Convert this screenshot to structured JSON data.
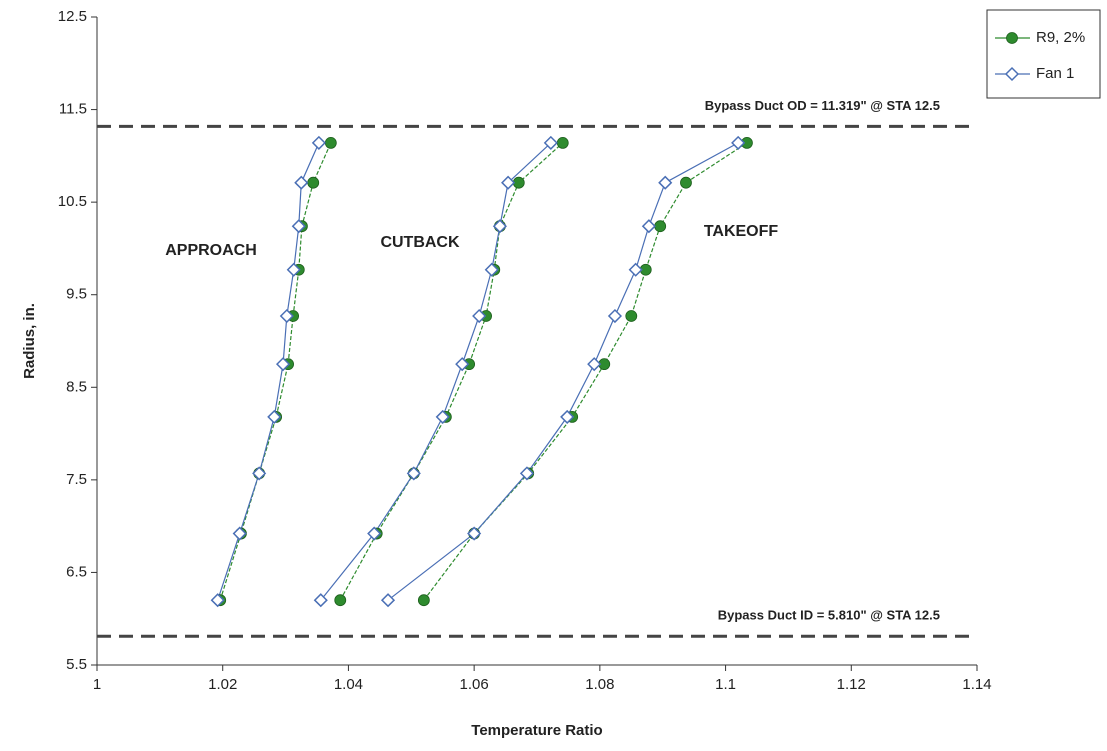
{
  "chart_data": {
    "type": "line",
    "xlabel": "Temperature Ratio",
    "ylabel": "Radius, in.",
    "xlim": [
      1,
      1.14
    ],
    "xticks": [
      1,
      1.02,
      1.04,
      1.06,
      1.08,
      1.1,
      1.12,
      1.14
    ],
    "ylim": [
      5.5,
      12.5
    ],
    "yticks": [
      5.5,
      6.5,
      7.5,
      8.5,
      9.5,
      10.5,
      11.5,
      12.5
    ],
    "grid": false,
    "legend": "outside-right",
    "series": [
      {
        "name": "R9, 2%",
        "color": "#2e8b2e",
        "marker": "circle",
        "x": [
          1.0196,
          1.0229,
          1.0258,
          1.0285,
          1.0304,
          1.0312,
          1.0321,
          1.0326,
          1.0344,
          1.0372,
          null,
          1.0387,
          1.0445,
          1.0504,
          1.0555,
          1.0592,
          1.0619,
          1.0632,
          1.0641,
          1.0671,
          1.0741,
          null,
          1.052,
          1.06,
          1.0686,
          1.0756,
          1.0807,
          1.085,
          1.0873,
          1.0896,
          1.0937,
          1.1034
        ],
        "values": [
          6.2,
          6.92,
          7.57,
          8.18,
          8.75,
          9.27,
          9.77,
          10.24,
          10.71,
          11.14,
          null,
          6.2,
          6.92,
          7.57,
          8.18,
          8.75,
          9.27,
          9.77,
          10.24,
          10.71,
          11.14,
          null,
          6.2,
          6.92,
          7.57,
          8.18,
          8.75,
          9.27,
          9.77,
          10.24,
          10.71,
          11.14
        ]
      },
      {
        "name": "Fan 1",
        "color": "#4a6fb5",
        "marker": "diamond",
        "x": [
          1.0192,
          1.0227,
          1.0258,
          1.0282,
          1.0296,
          1.0302,
          1.0313,
          1.0321,
          1.0325,
          1.0353,
          null,
          1.0356,
          1.0441,
          1.0504,
          1.055,
          1.0581,
          1.0608,
          1.0628,
          1.0641,
          1.0654,
          1.0722,
          null,
          1.0463,
          1.06,
          1.0684,
          1.0748,
          1.0791,
          1.0824,
          1.0857,
          1.0878,
          1.0904,
          1.102
        ],
        "values": [
          6.2,
          6.92,
          7.57,
          8.18,
          8.75,
          9.27,
          9.77,
          10.24,
          10.71,
          11.14,
          null,
          6.2,
          6.92,
          7.57,
          8.18,
          8.75,
          9.27,
          9.77,
          10.24,
          10.71,
          11.14,
          null,
          6.2,
          6.92,
          7.57,
          8.18,
          8.75,
          9.27,
          9.77,
          10.24,
          10.71,
          11.14
        ]
      }
    ],
    "hlines": [
      {
        "value": 11.319,
        "label": "Bypass Duct OD = 11.319\" @ STA 12.5",
        "color": "#444444"
      },
      {
        "value": 5.81,
        "label": "Bypass Duct ID = 5.810\" @ STA 12.5",
        "color": "#444444"
      }
    ],
    "annotations": [
      "APPROACH",
      "CUTBACK",
      "TAKEOFF"
    ]
  }
}
